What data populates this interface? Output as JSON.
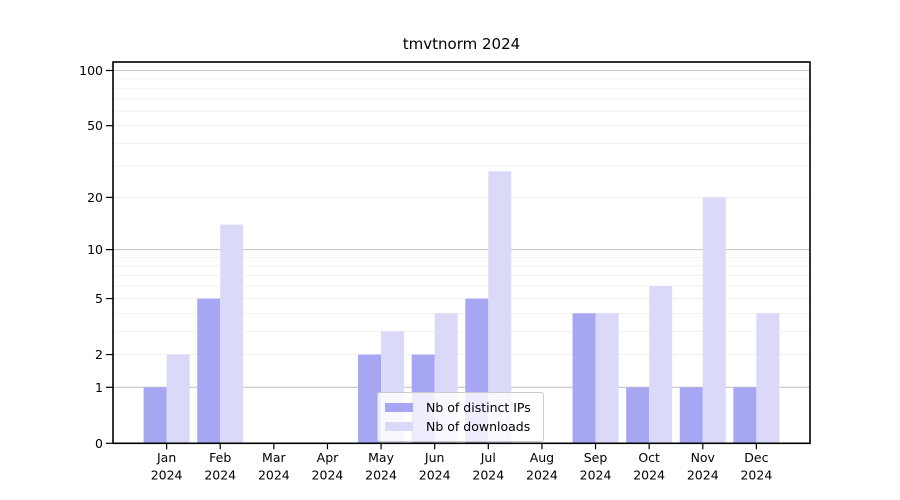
{
  "title": "tmvtnorm 2024",
  "legend": {
    "items": [
      {
        "label": "Nb of distinct IPs",
        "color": "#a6a6f3"
      },
      {
        "label": "Nb of downloads",
        "color": "#dadaf8"
      }
    ]
  },
  "chart_data": {
    "type": "bar",
    "title": "tmvtnorm 2024",
    "categories": [
      "Jan 2024",
      "Feb 2024",
      "Mar 2024",
      "Apr 2024",
      "May 2024",
      "Jun 2024",
      "Jul 2024",
      "Aug 2024",
      "Sep 2024",
      "Oct 2024",
      "Nov 2024",
      "Dec 2024"
    ],
    "series": [
      {
        "name": "Nb of distinct IPs",
        "color": "#a6a6f3",
        "values": [
          1,
          5,
          0,
          0,
          2,
          2,
          5,
          0,
          4,
          1,
          1,
          1
        ]
      },
      {
        "name": "Nb of downloads",
        "color": "#dadaf8",
        "values": [
          2,
          14,
          0,
          0,
          3,
          4,
          28,
          0,
          4,
          6,
          20,
          4
        ]
      }
    ],
    "yscale": "log1p",
    "yticks": [
      0,
      1,
      2,
      5,
      10,
      20,
      50,
      100
    ],
    "ylim": [
      0,
      113
    ],
    "xlabel": "",
    "ylabel": "",
    "grid": "horizontal-log-minor",
    "legend_position": "lower center",
    "colors": {
      "major_grid": "#c6c6c6",
      "minor_grid": "#efefef",
      "spine": "#000000",
      "bar_ips": "#a6a6f3",
      "bar_downloads": "#dadaf8"
    }
  }
}
